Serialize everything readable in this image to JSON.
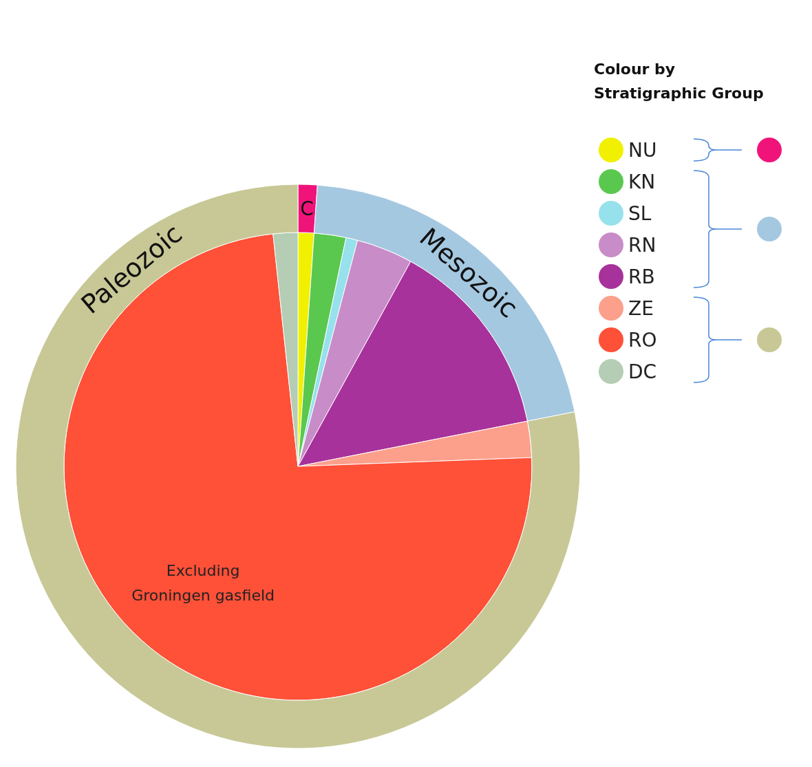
{
  "chart_data": [
    {
      "type": "pie",
      "legend_title": "Colour by Stratigraphic Group",
      "categories": [
        "NU",
        "KN",
        "SL",
        "RN",
        "RB",
        "ZE",
        "RO",
        "DC"
      ],
      "values": [
        1.1,
        2.2,
        0.8,
        3.9,
        13.9,
        2.5,
        73.9,
        1.7
      ],
      "colors": [
        "#f0f000",
        "#5ac84e",
        "#96e1eb",
        "#c88cc8",
        "#a8329b",
        "#fca08c",
        "#ff5038",
        "#b4cdb4"
      ],
      "legend": "right",
      "annotations": [
        "Excluding Groningen gasfield"
      ]
    },
    {
      "type": "donut",
      "categories": [
        "C",
        "Mesozoic",
        "Paleozoic"
      ],
      "values": [
        1.1,
        20.8,
        78.1
      ],
      "colors": [
        "#f0147a",
        "#a5c8e1",
        "#c8c896"
      ]
    }
  ]
}
